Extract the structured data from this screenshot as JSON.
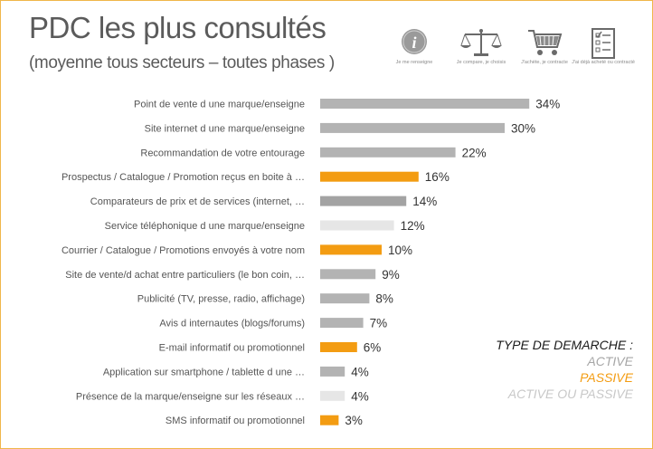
{
  "header": {
    "title": "PDC les plus consultés",
    "subtitle": "(moyenne tous secteurs – toutes phases )"
  },
  "icons": [
    {
      "name": "info-icon",
      "caption": "Je me renseigne"
    },
    {
      "name": "scale-icon",
      "caption": "Je compare, je choisis"
    },
    {
      "name": "cart-icon",
      "caption": "J'achète, je contracte"
    },
    {
      "name": "checklist-icon",
      "caption": "J'ai déjà acheté ou contracté"
    }
  ],
  "colors": {
    "active": "#b3b3b3",
    "passive": "#f39c12",
    "active_dark": "#a3a3a3",
    "active_or_passive": "#e6e6e6"
  },
  "legend": {
    "title": "TYPE DE DEMARCHE :",
    "active": "ACTIVE",
    "passive": "PASSIVE",
    "active_or_passive": "ACTIVE OU PASSIVE"
  },
  "chart_data": {
    "type": "bar",
    "orientation": "horizontal",
    "categories": [
      "Point de vente d une marque/enseigne",
      "Site internet d une marque/enseigne",
      "Recommandation de votre entourage",
      "Prospectus / Catalogue / Promotion reçus en boite à …",
      "Comparateurs de prix et de services (internet, …",
      "Service téléphonique d une marque/enseigne",
      "Courrier / Catalogue / Promotions envoyés à votre nom",
      "Site de vente/d achat entre particuliers (le bon coin, …",
      "Publicité (TV, presse, radio, affichage)",
      "Avis d internautes (blogs/forums)",
      "E-mail informatif ou promotionnel",
      "Application sur smartphone / tablette d une …",
      "Présence de la marque/enseigne sur les réseaux …",
      "SMS informatif ou promotionnel"
    ],
    "values": [
      34,
      30,
      22,
      16,
      14,
      12,
      10,
      9,
      8,
      7,
      6,
      4,
      4,
      3
    ],
    "value_labels": [
      "34%",
      "30%",
      "22%",
      "16%",
      "14%",
      "12%",
      "10%",
      "9%",
      "8%",
      "7%",
      "6%",
      "4%",
      "4%",
      "3%"
    ],
    "types": [
      "active",
      "active",
      "active",
      "passive",
      "active_dark",
      "active_or_passive",
      "passive",
      "active",
      "active",
      "active",
      "passive",
      "active",
      "active_or_passive",
      "passive"
    ],
    "xlim": [
      0,
      40
    ],
    "grid": false,
    "legend_position": "bottom-right"
  }
}
